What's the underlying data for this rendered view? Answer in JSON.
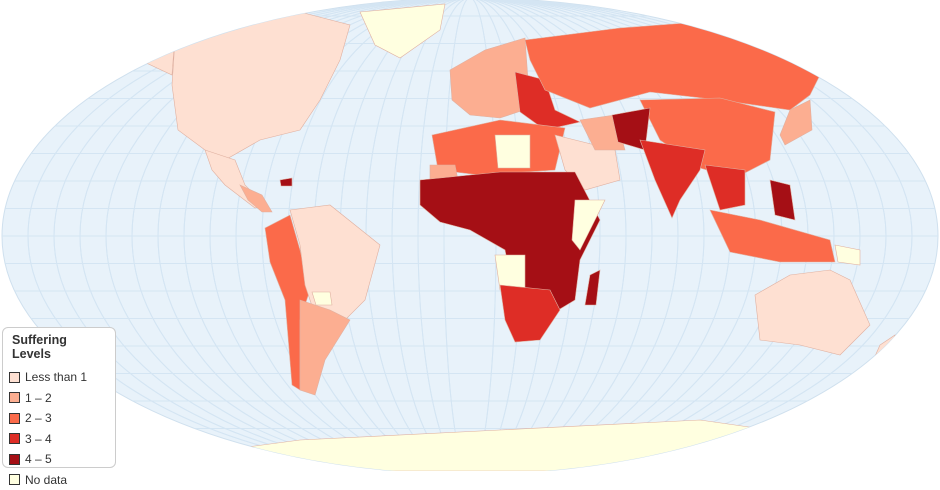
{
  "legend": {
    "title": "Suffering Levels",
    "items": [
      {
        "label": "Less than 1",
        "color": "#fee0d2"
      },
      {
        "label": "1 – 2",
        "color": "#fcae91"
      },
      {
        "label": "2 – 3",
        "color": "#fb6a4a"
      },
      {
        "label": "3 – 4",
        "color": "#de2d26"
      },
      {
        "label": "4 – 5",
        "color": "#a50f15"
      },
      {
        "label": "No data",
        "color": "#ffffe0"
      }
    ]
  },
  "map": {
    "ocean_color": "#e8f2fa",
    "graticule_color": "#d4e5f3",
    "projection": "Robinson"
  }
}
